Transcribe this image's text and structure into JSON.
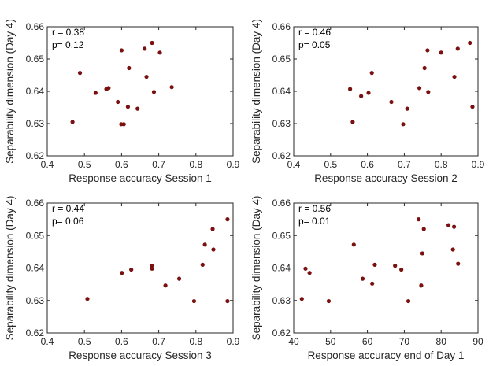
{
  "colors": {
    "marker": "#7a1010",
    "axis": "#262626",
    "background": "#ffffff"
  },
  "chart_data": [
    {
      "type": "scatter",
      "xlabel": "Response accuracy Session 1",
      "ylabel": "Separability dimension (Day 4)",
      "xlim": [
        0.4,
        0.9
      ],
      "ylim": [
        0.62,
        0.66
      ],
      "xticks": [
        "0.4",
        "0.5",
        "0.6",
        "0.7",
        "0.8",
        "0.9"
      ],
      "yticks": [
        "0.62",
        "0.63",
        "0.64",
        "0.65",
        "0.66"
      ],
      "stats": {
        "r": "r = 0.38",
        "p": "p= 0.12"
      },
      "x": [
        0.468,
        0.488,
        0.53,
        0.559,
        0.565,
        0.59,
        0.599,
        0.6,
        0.606,
        0.617,
        0.62,
        0.643,
        0.662,
        0.667,
        0.682,
        0.687,
        0.703,
        0.735
      ],
      "y": [
        0.6305,
        0.6457,
        0.6395,
        0.6407,
        0.641,
        0.6367,
        0.6298,
        0.6527,
        0.6298,
        0.6352,
        0.6472,
        0.6346,
        0.6532,
        0.6445,
        0.655,
        0.6398,
        0.652,
        0.6413
      ]
    },
    {
      "type": "scatter",
      "xlabel": "Response accuracy Session 2",
      "ylabel": "Separability dimension (Day 4)",
      "xlim": [
        0.4,
        0.9
      ],
      "ylim": [
        0.62,
        0.66
      ],
      "xticks": [
        "0.4",
        "0.5",
        "0.6",
        "0.7",
        "0.8",
        "0.9"
      ],
      "yticks": [
        "0.62",
        "0.63",
        "0.64",
        "0.65",
        "0.66"
      ],
      "stats": {
        "r": "r = 0.46",
        "p": "p= 0.05"
      },
      "x": [
        0.553,
        0.56,
        0.583,
        0.603,
        0.612,
        0.665,
        0.697,
        0.708,
        0.741,
        0.755,
        0.763,
        0.765,
        0.8,
        0.836,
        0.845,
        0.878,
        0.885
      ],
      "y": [
        0.6407,
        0.6305,
        0.6385,
        0.6395,
        0.6457,
        0.6367,
        0.6298,
        0.6346,
        0.641,
        0.6472,
        0.6527,
        0.6398,
        0.652,
        0.6445,
        0.6532,
        0.655,
        0.6352
      ]
    },
    {
      "type": "scatter",
      "xlabel": "Response accuracy Session 3",
      "ylabel": "Separability dimension (Day 4)",
      "xlim": [
        0.4,
        0.9
      ],
      "ylim": [
        0.62,
        0.66
      ],
      "xticks": [
        "0.4",
        "0.5",
        "0.6",
        "0.7",
        "0.8",
        "0.9"
      ],
      "yticks": [
        "0.62",
        "0.63",
        "0.64",
        "0.65",
        "0.66"
      ],
      "stats": {
        "r": "r = 0.44",
        "p": "p= 0.06"
      },
      "x": [
        0.508,
        0.601,
        0.626,
        0.681,
        0.682,
        0.718,
        0.755,
        0.795,
        0.818,
        0.824,
        0.845,
        0.847,
        0.885,
        0.885
      ],
      "y": [
        0.6305,
        0.6385,
        0.6395,
        0.6407,
        0.6398,
        0.6346,
        0.6367,
        0.6298,
        0.641,
        0.6472,
        0.652,
        0.6457,
        0.655,
        0.6298
      ]
    },
    {
      "type": "scatter",
      "xlabel": "Response accuracy end of Day 1",
      "ylabel": "Separability dimension (Day 4)",
      "xlim": [
        40,
        90
      ],
      "ylim": [
        0.62,
        0.66
      ],
      "xticks": [
        "40",
        "50",
        "60",
        "70",
        "80",
        "90"
      ],
      "yticks": [
        "0.62",
        "0.63",
        "0.64",
        "0.65",
        "0.66"
      ],
      "stats": {
        "r": "r = 0.56",
        "p": "p= 0.01"
      },
      "x": [
        42.2,
        43.2,
        44.3,
        49.5,
        56.3,
        58.7,
        61.3,
        62.0,
        67.5,
        69.2,
        71.1,
        73.9,
        74.6,
        74.9,
        75.3,
        82.0,
        83.2,
        83.5,
        84.6
      ],
      "y": [
        0.6305,
        0.6398,
        0.6385,
        0.6298,
        0.6472,
        0.6367,
        0.6352,
        0.641,
        0.6407,
        0.6395,
        0.6298,
        0.655,
        0.6346,
        0.6445,
        0.652,
        0.6532,
        0.6457,
        0.6527,
        0.6413
      ]
    }
  ]
}
